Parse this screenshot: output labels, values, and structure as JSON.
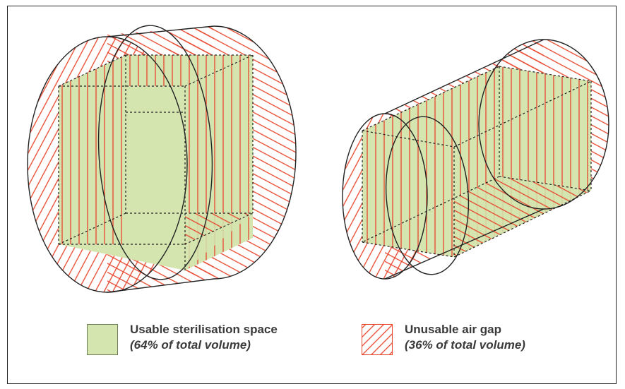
{
  "colors": {
    "usable_fill": "#d4e5b0",
    "hatch": "#e8442a",
    "outline": "#222222"
  },
  "legend": {
    "usable": {
      "title": "Usable sterilisation space",
      "subtitle": "(64% of total volume)",
      "icon": "green-square"
    },
    "airgap": {
      "title": "Unusable air gap",
      "subtitle": "(36% of total volume)",
      "icon": "red-hatched-square"
    }
  }
}
